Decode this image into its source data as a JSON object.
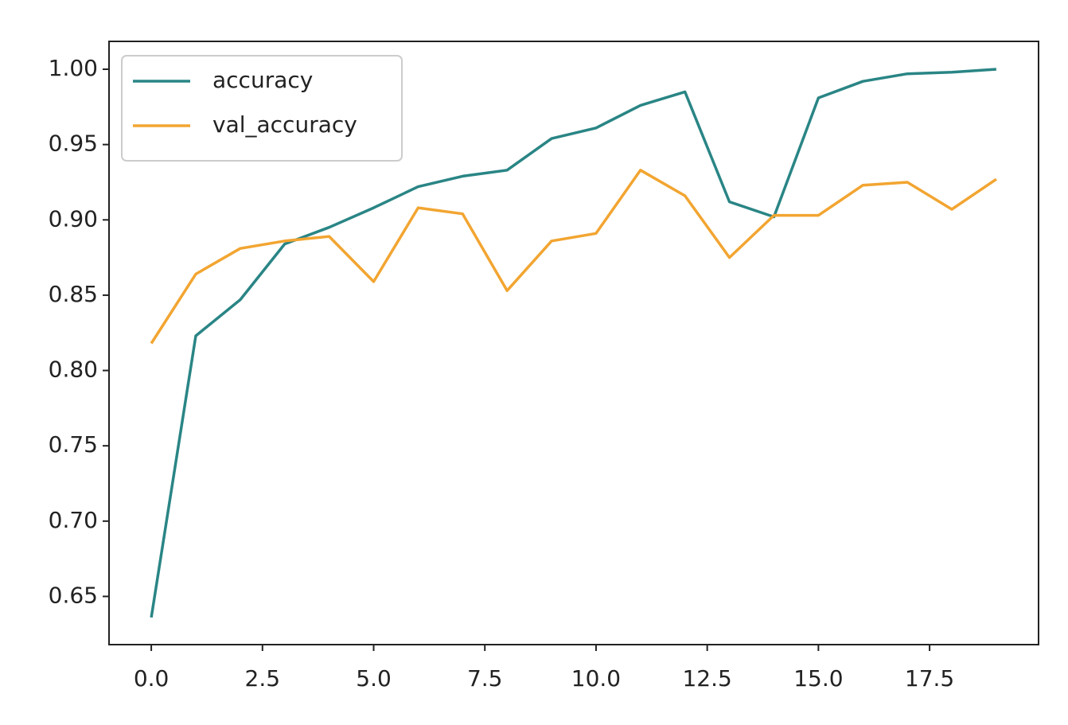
{
  "chart_data": {
    "type": "line",
    "x": [
      0,
      1,
      2,
      3,
      4,
      5,
      6,
      7,
      8,
      9,
      10,
      11,
      12,
      13,
      14,
      15,
      16,
      17,
      18,
      19
    ],
    "series": [
      {
        "name": "accuracy",
        "color": "#2a8585",
        "values": [
          0.636,
          0.823,
          0.847,
          0.884,
          0.895,
          0.908,
          0.922,
          0.929,
          0.933,
          0.954,
          0.961,
          0.976,
          0.985,
          0.912,
          0.902,
          0.981,
          0.992,
          0.997,
          0.998,
          1.0
        ]
      },
      {
        "name": "val_accuracy",
        "color": "#f2a531",
        "values": [
          0.818,
          0.864,
          0.881,
          0.886,
          0.889,
          0.859,
          0.908,
          0.904,
          0.853,
          0.886,
          0.891,
          0.933,
          0.916,
          0.875,
          0.903,
          0.903,
          0.923,
          0.925,
          0.907,
          0.927
        ]
      }
    ],
    "xlim": [
      -0.95,
      19.95
    ],
    "ylim": [
      0.618,
      1.0185
    ],
    "xticks": [
      {
        "value": 0,
        "label": "0.0"
      },
      2.5,
      {
        "value": 5,
        "label": "5.0"
      },
      7.5,
      {
        "value": 10,
        "label": "10.0"
      },
      12.5,
      {
        "value": 15,
        "label": "15.0"
      },
      17.5
    ],
    "yticks": [
      {
        "value": 0.65,
        "label": "0.65"
      },
      0.75,
      {
        "value": 0.7,
        "label": "0.70"
      },
      {
        "value": 0.8,
        "label": "0.80"
      },
      0.85,
      {
        "value": 0.9,
        "label": "0.90"
      },
      0.95,
      {
        "value": 1,
        "label": "1.00"
      }
    ],
    "grid": false,
    "legend": "upper left"
  }
}
